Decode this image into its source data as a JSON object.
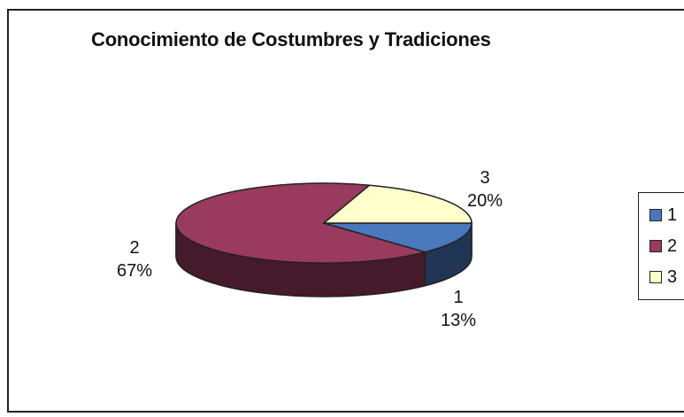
{
  "chart_data": {
    "type": "pie",
    "title": "Conocimiento de Costumbres y Tradiciones",
    "categories": [
      "1",
      "2",
      "3"
    ],
    "values": [
      13,
      67,
      20
    ],
    "value_labels": [
      "13%",
      "67%",
      "20%"
    ],
    "colors": [
      "#4a78bd",
      "#9a3a5e",
      "#ffffcc"
    ],
    "legend": {
      "position": "right",
      "entries": [
        "1",
        "2",
        "3"
      ]
    },
    "style": "3d-pie"
  }
}
